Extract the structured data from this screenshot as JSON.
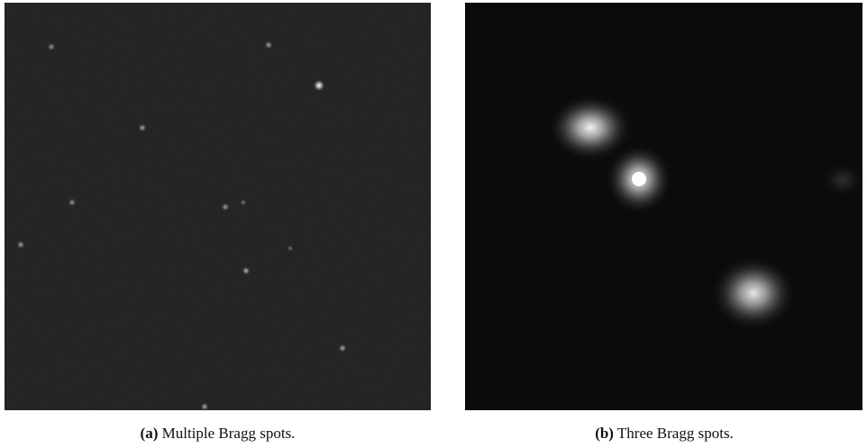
{
  "figures": [
    {
      "label": "(a)",
      "caption": "Multiple Bragg spots."
    },
    {
      "label": "(b)",
      "caption": "Three Bragg spots."
    }
  ]
}
